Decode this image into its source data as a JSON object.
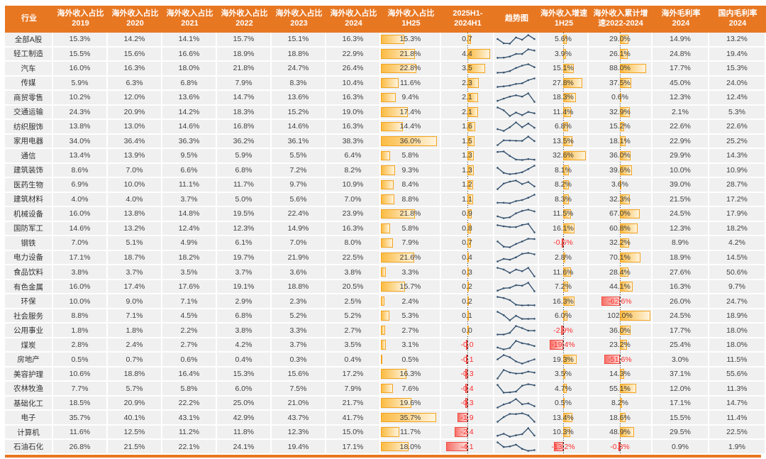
{
  "colors": {
    "header_bg": "#E87722",
    "cell_bg": "#F0F0F0",
    "bar_positive_border": "#F4A31E",
    "bar_negative_border": "#EE4D45",
    "sparkline": "#35526F",
    "negative_text": "#FE2C2C",
    "text": "#3F3F3F",
    "accent_strip": "#E87722"
  },
  "chart_data": {
    "type": "table",
    "title": "",
    "legend_position": "none",
    "scales": {
      "share_bar_max": 38,
      "chg_axis_max": 5,
      "growth_axis_max": 35,
      "cum_axis_max": 105
    },
    "columns": [
      {
        "id": "industry",
        "label": "行业"
      },
      {
        "id": "s2019",
        "label": "海外收入占比\n2019"
      },
      {
        "id": "s2020",
        "label": "海外收入占比\n2020"
      },
      {
        "id": "s2021",
        "label": "海外收入占比\n2021"
      },
      {
        "id": "s2022",
        "label": "海外收入占比\n2022"
      },
      {
        "id": "s2023",
        "label": "海外收入占比\n2023"
      },
      {
        "id": "s2024",
        "label": "海外收入占比\n2024"
      },
      {
        "id": "s1h25",
        "label": "海外收入占比\n1H25"
      },
      {
        "id": "chg",
        "label": "2025H1-\n2024H1"
      },
      {
        "id": "trend",
        "label": "趋势图"
      },
      {
        "id": "growth",
        "label": "海外收入增速\n1H25"
      },
      {
        "id": "cum",
        "label": "海外收入累计增\n速2022-2024"
      },
      {
        "id": "gm_os",
        "label": "海外毛利率\n2024"
      },
      {
        "id": "gm_dom",
        "label": "国内毛利率\n2024"
      }
    ],
    "rows": [
      {
        "industry": "全部A股",
        "shares": [
          "15.3%",
          "14.2%",
          "14.1%",
          "15.7%",
          "15.1%",
          "16.3%",
          "15.3%"
        ],
        "chg": "0.7",
        "growth": "5.6%",
        "cum": "29.0%",
        "gm_os": "14.9%",
        "gm_dom": "13.2%"
      },
      {
        "industry": "轻工制造",
        "shares": [
          "15.5%",
          "15.6%",
          "16.6%",
          "18.9%",
          "18.8%",
          "22.9%",
          "21.8%"
        ],
        "chg": "4.4",
        "growth": "3.9%",
        "cum": "26.1%",
        "gm_os": "24.8%",
        "gm_dom": "19.4%"
      },
      {
        "industry": "汽车",
        "shares": [
          "16.0%",
          "16.3%",
          "18.0%",
          "21.8%",
          "24.7%",
          "26.4%",
          "22.8%"
        ],
        "chg": "3.5",
        "growth": "15.1%",
        "cum": "88.0%",
        "gm_os": "17.7%",
        "gm_dom": "15.3%"
      },
      {
        "industry": "传媒",
        "shares": [
          "5.9%",
          "6.3%",
          "6.8%",
          "7.9%",
          "8.3%",
          "10.4%",
          "11.6%"
        ],
        "chg": "2.3",
        "growth": "27.8%",
        "cum": "37.5%",
        "gm_os": "45.0%",
        "gm_dom": "24.0%"
      },
      {
        "industry": "商贸零售",
        "shares": [
          "10.2%",
          "12.0%",
          "13.6%",
          "14.7%",
          "13.6%",
          "16.3%",
          "9.4%"
        ],
        "chg": "2.1",
        "growth": "18.3%",
        "cum": "0.6%",
        "gm_os": "12.3%",
        "gm_dom": "12.4%"
      },
      {
        "industry": "交通运输",
        "shares": [
          "24.3%",
          "20.9%",
          "14.2%",
          "18.3%",
          "15.2%",
          "19.0%",
          "17.4%"
        ],
        "chg": "2.1",
        "growth": "11.4%",
        "cum": "32.9%",
        "gm_os": "2.1%",
        "gm_dom": "5.3%"
      },
      {
        "industry": "纺织服饰",
        "shares": [
          "13.8%",
          "13.0%",
          "14.6%",
          "16.8%",
          "14.6%",
          "16.3%",
          "14.4%"
        ],
        "chg": "1.6",
        "growth": "6.8%",
        "cum": "15.2%",
        "gm_os": "22.6%",
        "gm_dom": "22.6%"
      },
      {
        "industry": "家用电器",
        "shares": [
          "34.0%",
          "36.4%",
          "36.3%",
          "36.2%",
          "36.1%",
          "38.3%",
          "36.0%"
        ],
        "chg": "1.5",
        "growth": "13.5%",
        "cum": "18.1%",
        "gm_os": "22.9%",
        "gm_dom": "25.2%"
      },
      {
        "industry": "通信",
        "shares": [
          "13.4%",
          "13.9%",
          "9.5%",
          "5.9%",
          "5.5%",
          "6.4%",
          "5.8%"
        ],
        "chg": "1.3",
        "growth": "32.6%",
        "cum": "36.0%",
        "gm_os": "29.9%",
        "gm_dom": "14.3%"
      },
      {
        "industry": "建筑装饰",
        "shares": [
          "8.6%",
          "7.0%",
          "6.6%",
          "6.8%",
          "7.2%",
          "8.2%",
          "9.3%"
        ],
        "chg": "1.3",
        "growth": "8.1%",
        "cum": "39.6%",
        "gm_os": "10.0%",
        "gm_dom": "10.9%"
      },
      {
        "industry": "医药生物",
        "shares": [
          "6.9%",
          "10.0%",
          "11.1%",
          "11.7%",
          "9.7%",
          "10.9%",
          "8.4%"
        ],
        "chg": "1.2",
        "growth": "8.2%",
        "cum": "3.6%",
        "gm_os": "39.0%",
        "gm_dom": "28.7%"
      },
      {
        "industry": "建筑材料",
        "shares": [
          "4.0%",
          "4.0%",
          "3.7%",
          "5.0%",
          "5.6%",
          "7.0%",
          "8.8%"
        ],
        "chg": "1.1",
        "growth": "8.3%",
        "cum": "32.3%",
        "gm_os": "21.5%",
        "gm_dom": "17.2%"
      },
      {
        "industry": "机械设备",
        "shares": [
          "16.0%",
          "13.8%",
          "14.8%",
          "19.5%",
          "22.4%",
          "23.9%",
          "21.8%"
        ],
        "chg": "0.9",
        "growth": "11.5%",
        "cum": "67.0%",
        "gm_os": "24.5%",
        "gm_dom": "17.9%"
      },
      {
        "industry": "国防军工",
        "shares": [
          "14.6%",
          "13.2%",
          "12.4%",
          "12.3%",
          "14.9%",
          "16.3%",
          "5.8%"
        ],
        "chg": "0.8",
        "growth": "16.1%",
        "cum": "60.8%",
        "gm_os": "12.3%",
        "gm_dom": "18.2%"
      },
      {
        "industry": "钢铁",
        "shares": [
          "7.0%",
          "5.1%",
          "4.9%",
          "6.1%",
          "7.0%",
          "8.0%",
          "7.9%"
        ],
        "chg": "0.7",
        "growth": "-0.5%",
        "cum": "32.2%",
        "gm_os": "8.9%",
        "gm_dom": "4.2%"
      },
      {
        "industry": "电力设备",
        "shares": [
          "17.1%",
          "18.7%",
          "18.2%",
          "19.7%",
          "21.9%",
          "22.5%",
          "21.6%"
        ],
        "chg": "0.4",
        "growth": "2.8%",
        "cum": "70.1%",
        "gm_os": "18.9%",
        "gm_dom": "14.5%"
      },
      {
        "industry": "食品饮料",
        "shares": [
          "3.8%",
          "3.7%",
          "3.5%",
          "3.7%",
          "3.6%",
          "3.8%",
          "3.3%"
        ],
        "chg": "0.3",
        "growth": "11.6%",
        "cum": "28.4%",
        "gm_os": "27.6%",
        "gm_dom": "50.6%"
      },
      {
        "industry": "有色金属",
        "shares": [
          "16.0%",
          "17.4%",
          "17.6%",
          "19.1%",
          "18.8%",
          "20.5%",
          "15.7%"
        ],
        "chg": "0.2",
        "growth": "7.2%",
        "cum": "44.1%",
        "gm_os": "16.3%",
        "gm_dom": "9.7%"
      },
      {
        "industry": "环保",
        "shares": [
          "10.0%",
          "9.0%",
          "7.1%",
          "2.9%",
          "2.3%",
          "2.5%",
          "2.4%"
        ],
        "chg": "0.2",
        "growth": "16.3%",
        "cum": "-62.6%",
        "gm_os": "26.0%",
        "gm_dom": "24.7%"
      },
      {
        "industry": "社会服务",
        "shares": [
          "8.8%",
          "7.1%",
          "4.5%",
          "6.8%",
          "5.2%",
          "5.2%",
          "5.3%"
        ],
        "chg": "0.1",
        "growth": "6.0%",
        "cum": "102.0%",
        "gm_os": "24.5%",
        "gm_dom": "18.9%"
      },
      {
        "industry": "公用事业",
        "shares": [
          "1.8%",
          "1.8%",
          "2.2%",
          "3.8%",
          "3.3%",
          "2.7%",
          "2.7%"
        ],
        "chg": "0.0",
        "growth": "-2.9%",
        "cum": "36.0%",
        "gm_os": "17.7%",
        "gm_dom": "18.0%"
      },
      {
        "industry": "煤炭",
        "shares": [
          "2.8%",
          "2.4%",
          "2.7%",
          "4.2%",
          "3.7%",
          "3.5%",
          "3.1%"
        ],
        "chg": "-0.0",
        "growth": "-19.4%",
        "cum": "23.2%",
        "gm_os": "25.4%",
        "gm_dom": "18.0%"
      },
      {
        "industry": "房地产",
        "shares": [
          "0.5%",
          "0.7%",
          "0.6%",
          "0.4%",
          "0.3%",
          "0.4%",
          "0.5%"
        ],
        "chg": "-0.1",
        "growth": "19.3%",
        "cum": "-51.6%",
        "gm_os": "3.0%",
        "gm_dom": "11.5%"
      },
      {
        "industry": "美容护理",
        "shares": [
          "10.6%",
          "18.8%",
          "16.4%",
          "15.3%",
          "15.6%",
          "17.2%",
          "16.3%"
        ],
        "chg": "-0.3",
        "growth": "3.5%",
        "cum": "14.3%",
        "gm_os": "37.1%",
        "gm_dom": "55.6%"
      },
      {
        "industry": "农林牧渔",
        "shares": [
          "7.7%",
          "5.7%",
          "5.8%",
          "6.0%",
          "7.5%",
          "7.9%",
          "7.6%"
        ],
        "chg": "-0.4",
        "growth": "4.7%",
        "cum": "55.1%",
        "gm_os": "12.0%",
        "gm_dom": "11.3%"
      },
      {
        "industry": "基础化工",
        "shares": [
          "18.5%",
          "20.9%",
          "22.2%",
          "25.0%",
          "21.0%",
          "21.7%",
          "19.6%"
        ],
        "chg": "-0.3",
        "growth": "0.5%",
        "cum": "8.2%",
        "gm_os": "17.1%",
        "gm_dom": "14.7%"
      },
      {
        "industry": "电子",
        "shares": [
          "35.7%",
          "40.1%",
          "43.1%",
          "42.9%",
          "43.7%",
          "41.7%",
          "35.7%"
        ],
        "chg": "-1.9",
        "growth": "13.4%",
        "cum": "18.6%",
        "gm_os": "15.5%",
        "gm_dom": "11.4%"
      },
      {
        "industry": "计算机",
        "shares": [
          "11.6%",
          "12.5%",
          "11.2%",
          "11.8%",
          "12.3%",
          "15.0%",
          "11.7%"
        ],
        "chg": "-2.4",
        "growth": "10.3%",
        "cum": "48.9%",
        "gm_os": "29.5%",
        "gm_dom": "22.5%"
      },
      {
        "industry": "石油石化",
        "shares": [
          "26.8%",
          "21.5%",
          "22.1%",
          "24.1%",
          "19.4%",
          "17.1%",
          "18.0%"
        ],
        "chg": "-4.1",
        "growth": "-13.2%",
        "cum": "-0.3%",
        "gm_os": "0.9%",
        "gm_dom": "1.9%"
      }
    ]
  }
}
